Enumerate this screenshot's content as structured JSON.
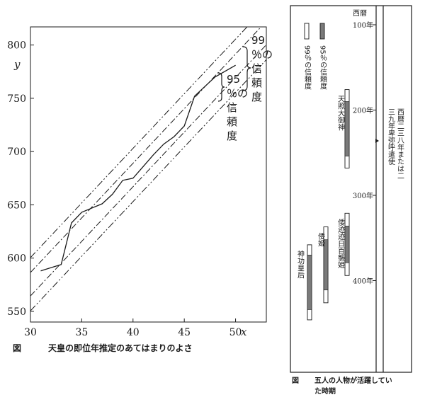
{
  "chart_data": [
    {
      "type": "line",
      "title": "天皇の即位年推定のあてはまりのよさ",
      "caption_prefix": "図",
      "xlabel": "x",
      "ylabel": "y",
      "xlim": [
        30,
        53
      ],
      "ylim": [
        540,
        817
      ],
      "x_ticks": [
        30,
        35,
        40,
        45,
        50
      ],
      "y_ticks": [
        550,
        600,
        650,
        700,
        750,
        800
      ],
      "grid": false,
      "series": [
        {
          "role": "observed",
          "x": [
            31,
            33,
            34,
            35,
            37,
            38,
            39,
            40,
            41,
            42,
            43,
            44,
            45,
            46,
            47,
            48,
            50
          ],
          "y": [
            588,
            594,
            633,
            643,
            651,
            660,
            673,
            675,
            686,
            697,
            707,
            714,
            724,
            752,
            761,
            770,
            781
          ]
        }
      ],
      "regression": {
        "slope": 10.25,
        "intercept": 268
      },
      "bands": [
        {
          "label": "99％の信頼度",
          "half_width": 25,
          "style": "dash-dot-dot"
        },
        {
          "label": "95％の信頼度",
          "half_width": 11,
          "style": "dash-dot"
        }
      ]
    },
    {
      "type": "timeline",
      "caption_prefix": "図",
      "title": "五人の人物が活躍していた時期",
      "axis_header": "西暦",
      "year_ticks": [
        "100年",
        "200年",
        "300年",
        "400年"
      ],
      "year_values": [
        100,
        200,
        300,
        400
      ],
      "legend": [
        "99％の信頼度",
        "95％の信頼度"
      ],
      "marker_text": "西暦二三八年または二三九年卑弥呼遣使",
      "marker_year": 238.5,
      "people": [
        {
          "name": "天照大御神",
          "ci99": [
            176,
            268
          ],
          "ci95": [
            190,
            254
          ]
        },
        {
          "name": "倭迹迹日百襲姫",
          "ci99": [
            321,
            394
          ],
          "ci95": [
            336,
            379
          ]
        },
        {
          "name": "倭姫",
          "ci99": [
            337,
            426
          ],
          "ci95": [
            352,
            411
          ]
        },
        {
          "name": "神功皇后",
          "ci99": [
            358,
            446
          ],
          "ci95": [
            370,
            434
          ]
        }
      ]
    }
  ]
}
